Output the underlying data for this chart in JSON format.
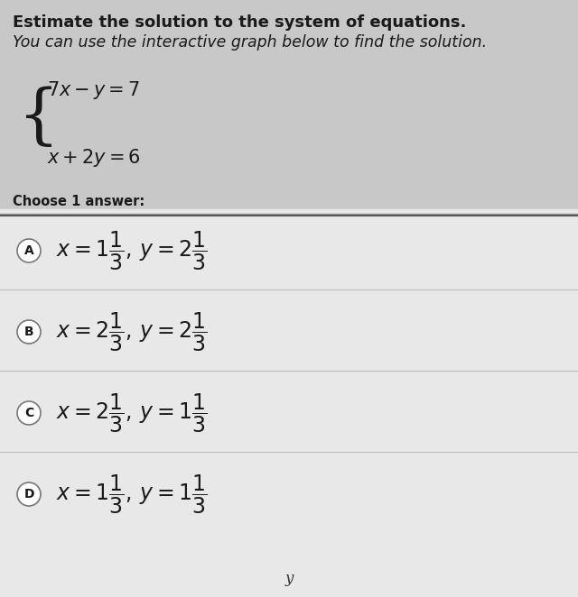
{
  "title_line1": "Estimate the solution to the system of equations.",
  "title_line2": "You can use the interactive graph below to find the solution.",
  "eq1": "$7x-y=7$",
  "eq2": "$x+2y=6$",
  "choose_text": "Choose 1 answer:",
  "options": [
    {
      "label": "A",
      "x_whole": "1",
      "x_frac_num": "1",
      "x_frac_den": "3",
      "y_whole": "2",
      "y_frac_num": "1",
      "y_frac_den": "3"
    },
    {
      "label": "B",
      "x_whole": "2",
      "x_frac_num": "1",
      "x_frac_den": "3",
      "y_whole": "2",
      "y_frac_num": "1",
      "y_frac_den": "3"
    },
    {
      "label": "C",
      "x_whole": "2",
      "x_frac_num": "1",
      "x_frac_den": "3",
      "y_whole": "1",
      "y_frac_num": "1",
      "y_frac_den": "3"
    },
    {
      "label": "D",
      "x_whole": "1",
      "x_frac_num": "1",
      "x_frac_den": "3",
      "y_whole": "1",
      "y_frac_num": "1",
      "y_frac_den": "3"
    }
  ],
  "footer_text": "y",
  "bg_color_top": "#c8c8c8",
  "bg_color_bottom": "#e8e8e8",
  "text_color": "#1a1a1a",
  "circle_color": "#ffffff",
  "circle_edge_color": "#777777",
  "divider_color": "#aaaaaa",
  "title_fontsize": 13.0,
  "choose_fontsize": 10.5,
  "eq_fontsize": 15,
  "option_fontsize": 17,
  "label_fontsize": 10
}
